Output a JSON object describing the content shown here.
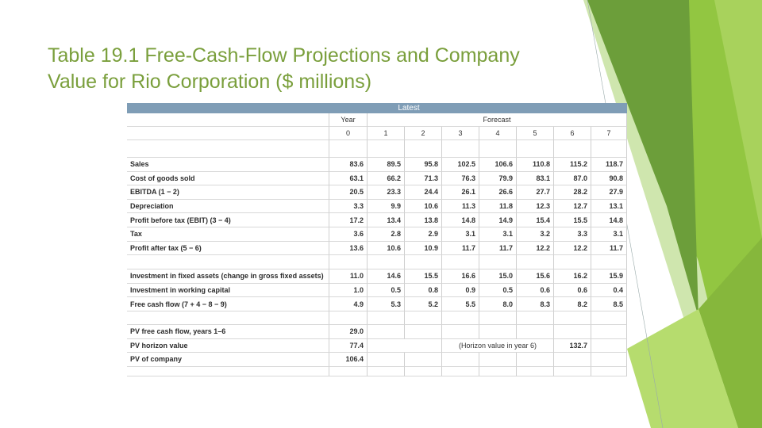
{
  "title": "Table 19.1 Free-Cash-Flow Projections and Company Value for Rio Corporation ($ millions)",
  "table": {
    "banner": "Latest",
    "year_label": "Year",
    "forecast_label": "Forecast",
    "years": [
      "0",
      "1",
      "2",
      "3",
      "4",
      "5",
      "6",
      "7"
    ],
    "rows": [
      {
        "label": "Sales",
        "values": [
          "83.6",
          "89.5",
          "95.8",
          "102.5",
          "106.6",
          "110.8",
          "115.2",
          "118.7"
        ]
      },
      {
        "label": "Cost of goods sold",
        "values": [
          "63.1",
          "66.2",
          "71.3",
          "76.3",
          "79.9",
          "83.1",
          "87.0",
          "90.8"
        ]
      },
      {
        "label": "EBITDA (1 − 2)",
        "values": [
          "20.5",
          "23.3",
          "24.4",
          "26.1",
          "26.6",
          "27.7",
          "28.2",
          "27.9"
        ]
      },
      {
        "label": "Depreciation",
        "values": [
          "3.3",
          "9.9",
          "10.6",
          "11.3",
          "11.8",
          "12.3",
          "12.7",
          "13.1"
        ]
      },
      {
        "label": "Profit before tax (EBIT) (3 − 4)",
        "values": [
          "17.2",
          "13.4",
          "13.8",
          "14.8",
          "14.9",
          "15.4",
          "15.5",
          "14.8"
        ]
      },
      {
        "label": "Tax",
        "values": [
          "3.6",
          "2.8",
          "2.9",
          "3.1",
          "3.1",
          "3.2",
          "3.3",
          "3.1"
        ]
      },
      {
        "label": "Profit after tax (5 − 6)",
        "values": [
          "13.6",
          "10.6",
          "10.9",
          "11.7",
          "11.7",
          "12.2",
          "12.2",
          "11.7"
        ]
      }
    ],
    "investment_rows": [
      {
        "label": "Investment in fixed assets (change in gross fixed assets)",
        "values": [
          "11.0",
          "14.6",
          "15.5",
          "16.6",
          "15.0",
          "15.6",
          "16.2",
          "15.9"
        ]
      },
      {
        "label": "Investment in working capital",
        "values": [
          "1.0",
          "0.5",
          "0.8",
          "0.9",
          "0.5",
          "0.6",
          "0.6",
          "0.4"
        ]
      },
      {
        "label": "Free cash flow (7 + 4 − 8 − 9)",
        "values": [
          "4.9",
          "5.3",
          "5.2",
          "5.5",
          "8.0",
          "8.3",
          "8.2",
          "8.5"
        ]
      }
    ],
    "pv_rows": [
      {
        "label": "PV free cash flow, years 1–6",
        "value": "29.0"
      },
      {
        "label": "PV horizon value",
        "value": "77.4",
        "note": "(Horizon value in year 6)",
        "note_value": "132.7"
      },
      {
        "label": "PV of company",
        "value": "106.4"
      }
    ]
  }
}
